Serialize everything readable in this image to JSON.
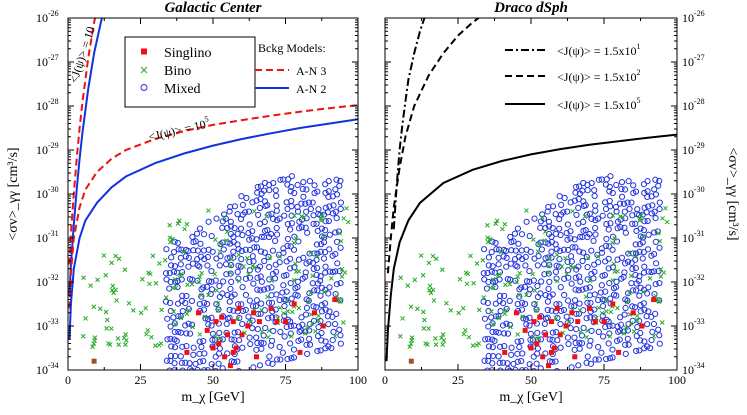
{
  "chart_data": [
    {
      "type": "scatter",
      "title": "Galactic Center",
      "xlabel": "m_χ [GeV]",
      "ylabel": "<σv>_γγ [cm³/s]",
      "xlim": [
        0,
        100
      ],
      "ylim_log10": [
        -34,
        -26
      ],
      "x_ticks": [
        "0",
        "25",
        "50",
        "75",
        "100"
      ],
      "y_ticks": [
        {
          "base": "10",
          "exp": "-34"
        },
        {
          "base": "10",
          "exp": "-33"
        },
        {
          "base": "10",
          "exp": "-32"
        },
        {
          "base": "10",
          "exp": "-31"
        },
        {
          "base": "10",
          "exp": "-30"
        },
        {
          "base": "10",
          "exp": "-29"
        },
        {
          "base": "10",
          "exp": "-28"
        },
        {
          "base": "10",
          "exp": "-27"
        },
        {
          "base": "10",
          "exp": "-26"
        }
      ],
      "scatter_legend": [
        {
          "name": "Singlino",
          "color": "#ee1111",
          "marker": "square"
        },
        {
          "name": "Bino",
          "color": "#22aa22",
          "marker": "cross"
        },
        {
          "name": "Mixed",
          "color": "#2233dd",
          "marker": "circle"
        }
      ],
      "bckg_legend_title": "Bckg Models:",
      "curves": [
        {
          "name": "A-N 3",
          "color": "#ee1111",
          "dash": "dashed",
          "points": [
            [
              0.5,
              -31.6
            ],
            [
              1,
              -30.9
            ],
            [
              2,
              -30.0
            ],
            [
              3,
              -29.2
            ],
            [
              4,
              -28.5
            ],
            [
              5,
              -27.9
            ],
            [
              6,
              -27.4
            ],
            [
              7,
              -26.9
            ],
            [
              8,
              -26.5
            ],
            [
              9,
              -26.1
            ],
            [
              10,
              -25.8
            ]
          ]
        },
        {
          "name": "A-N 2",
          "color": "#1133dd",
          "dash": "solid",
          "points": [
            [
              0.5,
              -32.3
            ],
            [
              1,
              -31.6
            ],
            [
              2,
              -30.7
            ],
            [
              3,
              -29.9
            ],
            [
              4,
              -29.2
            ],
            [
              5,
              -28.6
            ],
            [
              6,
              -28.1
            ],
            [
              7,
              -27.6
            ],
            [
              8,
              -27.2
            ],
            [
              9,
              -26.8
            ],
            [
              10,
              -26.5
            ],
            [
              11,
              -26.2
            ],
            [
              12,
              -25.9
            ]
          ]
        },
        {
          "name": "A-N 3",
          "color": "#ee1111",
          "dash": "dashed",
          "points": [
            [
              0.5,
              -32.6
            ],
            [
              1,
              -31.8
            ],
            [
              2,
              -31.0
            ],
            [
              4,
              -30.3
            ],
            [
              6,
              -29.9
            ],
            [
              10,
              -29.5
            ],
            [
              15,
              -29.2
            ],
            [
              20,
              -29.0
            ],
            [
              30,
              -28.75
            ],
            [
              40,
              -28.57
            ],
            [
              50,
              -28.43
            ],
            [
              60,
              -28.32
            ],
            [
              70,
              -28.22
            ],
            [
              80,
              -28.13
            ],
            [
              90,
              -28.05
            ],
            [
              100,
              -27.98
            ]
          ]
        },
        {
          "name": "A-N 2",
          "color": "#1133dd",
          "dash": "solid",
          "points": [
            [
              0.5,
              -33.3
            ],
            [
              1,
              -32.5
            ],
            [
              2,
              -31.7
            ],
            [
              4,
              -31.0
            ],
            [
              6,
              -30.6
            ],
            [
              10,
              -30.2
            ],
            [
              15,
              -29.85
            ],
            [
              20,
              -29.6
            ],
            [
              30,
              -29.3
            ],
            [
              40,
              -29.08
            ],
            [
              50,
              -28.9
            ],
            [
              60,
              -28.75
            ],
            [
              70,
              -28.62
            ],
            [
              80,
              -28.5
            ],
            [
              90,
              -28.4
            ],
            [
              100,
              -28.3
            ]
          ]
        }
      ],
      "curve_annotations": [
        {
          "text": "<J(ψ)> = 10",
          "sup": "",
          "x": 6,
          "y": -27.5
        },
        {
          "text": "<J(ψ)> = 10",
          "sup": "5",
          "x": 20,
          "y": -28.7
        }
      ]
    },
    {
      "type": "scatter",
      "title": "Draco dSph",
      "xlabel": "m_χ [GeV]",
      "ylabel": "<σv>_γγ [cm³/s]",
      "xlim": [
        0,
        100
      ],
      "ylim_log10": [
        -34,
        -26
      ],
      "x_ticks": [
        "0",
        "25",
        "50",
        "75",
        "100"
      ],
      "y_ticks": [
        {
          "base": "10",
          "exp": "-34"
        },
        {
          "base": "10",
          "exp": "-33"
        },
        {
          "base": "10",
          "exp": "-32"
        },
        {
          "base": "10",
          "exp": "-31"
        },
        {
          "base": "10",
          "exp": "-30"
        },
        {
          "base": "10",
          "exp": "-29"
        },
        {
          "base": "10",
          "exp": "-28"
        },
        {
          "base": "10",
          "exp": "-27"
        },
        {
          "base": "10",
          "exp": "-26"
        }
      ],
      "curves": [
        {
          "name": "<J(ψ)> = 1.5x10",
          "sup": "1",
          "color": "#000000",
          "dash": "dashdot",
          "points": [
            [
              3,
              -30.8
            ],
            [
              4,
              -29.8
            ],
            [
              5,
              -29.0
            ],
            [
              6,
              -28.4
            ],
            [
              7,
              -27.9
            ],
            [
              8,
              -27.4
            ],
            [
              10,
              -26.8
            ],
            [
              12,
              -26.3
            ],
            [
              14,
              -25.9
            ]
          ]
        },
        {
          "name": "<J(ψ)> = 1.5x10",
          "sup": "2",
          "color": "#000000",
          "dash": "dashed",
          "points": [
            [
              1,
              -31.8
            ],
            [
              2,
              -31.0
            ],
            [
              3,
              -30.3
            ],
            [
              5,
              -29.4
            ],
            [
              7,
              -28.7
            ],
            [
              10,
              -28.0
            ],
            [
              15,
              -27.3
            ],
            [
              20,
              -26.8
            ],
            [
              25,
              -26.4
            ],
            [
              30,
              -26.1
            ],
            [
              34,
              -25.9
            ]
          ]
        },
        {
          "name": "<J(ψ)> = 1.5x10",
          "sup": "5",
          "color": "#000000",
          "dash": "solid",
          "points": [
            [
              0.5,
              -33.8
            ],
            [
              1,
              -33.1
            ],
            [
              2,
              -32.3
            ],
            [
              3,
              -31.7
            ],
            [
              5,
              -31.1
            ],
            [
              8,
              -30.6
            ],
            [
              12,
              -30.2
            ],
            [
              20,
              -29.75
            ],
            [
              30,
              -29.45
            ],
            [
              40,
              -29.25
            ],
            [
              50,
              -29.1
            ],
            [
              60,
              -28.98
            ],
            [
              70,
              -28.88
            ],
            [
              80,
              -28.8
            ],
            [
              90,
              -28.72
            ],
            [
              100,
              -28.65
            ]
          ]
        }
      ]
    }
  ]
}
